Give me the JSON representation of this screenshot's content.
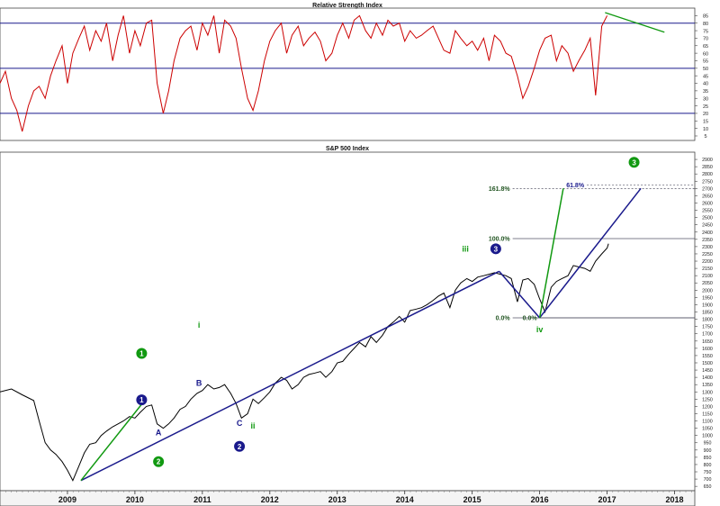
{
  "chart_data": [
    {
      "type": "line",
      "title": "Relative Strength Index",
      "ylim": [
        2,
        90
      ],
      "y_ticks": [
        5,
        10,
        15,
        20,
        25,
        30,
        35,
        40,
        45,
        50,
        55,
        60,
        65,
        70,
        75,
        80,
        85
      ],
      "reference_lines": [
        20,
        50,
        80
      ],
      "colors": {
        "series": "#cc0000",
        "reference": "#1a1a8c",
        "trendline": "#119911"
      },
      "trendline": {
        "x": [
          2016.97,
          2017.85
        ],
        "y": [
          87,
          74
        ]
      },
      "series": [
        {
          "x": [
            2008.0,
            2008.08,
            2008.17,
            2008.25,
            2008.33,
            2008.42,
            2008.5,
            2008.58,
            2008.67,
            2008.75,
            2008.83,
            2008.92,
            2009.0,
            2009.08,
            2009.17,
            2009.25,
            2009.33,
            2009.42,
            2009.5,
            2009.58,
            2009.67,
            2009.75,
            2009.83,
            2009.92,
            2010.0,
            2010.08,
            2010.17,
            2010.25,
            2010.33,
            2010.42,
            2010.5,
            2010.58,
            2010.67,
            2010.75,
            2010.83,
            2010.92,
            2011.0,
            2011.08,
            2011.17,
            2011.25,
            2011.33,
            2011.42,
            2011.5,
            2011.58,
            2011.67,
            2011.75,
            2011.83,
            2011.92,
            2012.0,
            2012.08,
            2012.17,
            2012.25,
            2012.33,
            2012.42,
            2012.5,
            2012.58,
            2012.67,
            2012.75,
            2012.83,
            2012.92,
            2013.0,
            2013.08,
            2013.17,
            2013.25,
            2013.33,
            2013.42,
            2013.5,
            2013.58,
            2013.67,
            2013.75,
            2013.83,
            2013.92,
            2014.0,
            2014.08,
            2014.17,
            2014.25,
            2014.33,
            2014.42,
            2014.5,
            2014.58,
            2014.67,
            2014.75,
            2014.83,
            2014.92,
            2015.0,
            2015.08,
            2015.17,
            2015.25,
            2015.33,
            2015.42,
            2015.5,
            2015.58,
            2015.67,
            2015.75,
            2015.83,
            2015.92,
            2016.0,
            2016.08,
            2016.17,
            2016.25,
            2016.33,
            2016.42,
            2016.5,
            2016.58,
            2016.67,
            2016.75,
            2016.83,
            2016.92,
            2017.0
          ],
          "y": [
            40,
            48,
            30,
            22,
            8,
            25,
            35,
            38,
            30,
            45,
            55,
            65,
            40,
            60,
            70,
            78,
            62,
            75,
            68,
            80,
            55,
            72,
            85,
            60,
            75,
            65,
            80,
            82,
            40,
            20,
            35,
            55,
            70,
            75,
            78,
            62,
            80,
            72,
            85,
            60,
            82,
            78,
            70,
            50,
            30,
            22,
            35,
            55,
            68,
            75,
            80,
            60,
            72,
            78,
            65,
            70,
            74,
            68,
            55,
            60,
            72,
            80,
            70,
            82,
            85,
            75,
            70,
            80,
            72,
            82,
            78,
            80,
            68,
            75,
            70,
            72,
            75,
            78,
            70,
            62,
            60,
            75,
            70,
            65,
            68,
            62,
            70,
            55,
            72,
            68,
            60,
            58,
            45,
            30,
            38,
            50,
            62,
            70,
            72,
            55,
            65,
            60,
            48,
            55,
            62,
            70,
            32,
            78,
            85
          ]
        }
      ]
    },
    {
      "type": "line",
      "title": "S&P 500 Index",
      "xlim": [
        2008.0,
        2018.3
      ],
      "x_ticks": [
        "2009",
        "2010",
        "2011",
        "2012",
        "2013",
        "2014",
        "2015",
        "2016",
        "2017",
        "2018"
      ],
      "x_tick_values": [
        2009,
        2010,
        2011,
        2012,
        2013,
        2014,
        2015,
        2016,
        2017,
        2018
      ],
      "ylim": [
        620,
        2950
      ],
      "y_ticks": [
        650,
        700,
        750,
        800,
        850,
        900,
        950,
        1000,
        1050,
        1100,
        1150,
        1200,
        1250,
        1300,
        1350,
        1400,
        1450,
        1500,
        1550,
        1600,
        1650,
        1700,
        1750,
        1800,
        1850,
        1900,
        1950,
        2000,
        2050,
        2100,
        2150,
        2200,
        2250,
        2300,
        2350,
        2400,
        2450,
        2500,
        2550,
        2600,
        2650,
        2700,
        2750,
        2800,
        2850,
        2900
      ],
      "colors": {
        "price": "#000000",
        "blue": "#1a1a8c",
        "green": "#119911",
        "fib": "#225522"
      },
      "series": [
        {
          "name": "",
          "x": [
            2008.0,
            2008.17,
            2008.33,
            2008.5,
            2008.58,
            2008.67,
            2008.75,
            2008.83,
            2008.92,
            2009.0,
            2009.08,
            2009.17,
            2009.25,
            2009.33,
            2009.42,
            2009.5,
            2009.58,
            2009.67,
            2009.75,
            2009.83,
            2009.92,
            2010.0,
            2010.08,
            2010.17,
            2010.25,
            2010.33,
            2010.42,
            2010.5,
            2010.58,
            2010.67,
            2010.75,
            2010.83,
            2010.92,
            2011.0,
            2011.08,
            2011.17,
            2011.25,
            2011.33,
            2011.42,
            2011.5,
            2011.58,
            2011.67,
            2011.75,
            2011.83,
            2011.92,
            2012.0,
            2012.08,
            2012.17,
            2012.25,
            2012.33,
            2012.42,
            2012.5,
            2012.58,
            2012.67,
            2012.75,
            2012.83,
            2012.92,
            2013.0,
            2013.08,
            2013.17,
            2013.25,
            2013.33,
            2013.42,
            2013.5,
            2013.58,
            2013.67,
            2013.75,
            2013.83,
            2013.92,
            2014.0,
            2014.08,
            2014.17,
            2014.25,
            2014.33,
            2014.42,
            2014.5,
            2014.58,
            2014.67,
            2014.75,
            2014.83,
            2014.92,
            2015.0,
            2015.08,
            2015.17,
            2015.25,
            2015.33,
            2015.42,
            2015.5,
            2015.58,
            2015.67,
            2015.75,
            2015.83,
            2015.92,
            2016.0,
            2016.08,
            2016.17,
            2016.25,
            2016.33,
            2016.42,
            2016.5,
            2016.58,
            2016.67,
            2016.75,
            2016.83,
            2016.92,
            2017.0,
            2017.02
          ],
          "y": [
            1300,
            1320,
            1280,
            1240,
            1100,
            950,
            900,
            870,
            820,
            760,
            690,
            790,
            880,
            940,
            950,
            1000,
            1030,
            1060,
            1080,
            1100,
            1130,
            1120,
            1160,
            1200,
            1210,
            1080,
            1050,
            1080,
            1120,
            1180,
            1200,
            1250,
            1290,
            1310,
            1350,
            1320,
            1330,
            1350,
            1290,
            1220,
            1120,
            1150,
            1250,
            1220,
            1260,
            1300,
            1360,
            1400,
            1380,
            1320,
            1350,
            1400,
            1420,
            1430,
            1440,
            1400,
            1440,
            1500,
            1510,
            1560,
            1600,
            1640,
            1610,
            1680,
            1640,
            1690,
            1750,
            1780,
            1820,
            1780,
            1860,
            1870,
            1880,
            1900,
            1930,
            1960,
            1980,
            1880,
            2000,
            2050,
            2080,
            2060,
            2090,
            2100,
            2110,
            2120,
            2110,
            2100,
            2080,
            1920,
            2070,
            2080,
            2040,
            1940,
            1850,
            2020,
            2060,
            2080,
            2100,
            2170,
            2160,
            2150,
            2130,
            2200,
            2250,
            2290,
            2320
          ]
        }
      ],
      "overlays": {
        "blue_lines": [
          [
            [
              2009.2,
              690
            ],
            [
              2015.4,
              2130
            ]
          ],
          [
            [
              2015.4,
              2130
            ],
            [
              2016.0,
              1810
            ]
          ],
          [
            [
              2016.0,
              1810
            ],
            [
              2017.5,
              2700
            ]
          ]
        ],
        "green_lines": [
          [
            [
              2009.2,
              690
            ],
            [
              2010.1,
              1215
            ]
          ],
          [
            [
              2016.0,
              1810
            ],
            [
              2016.35,
              2700
            ]
          ]
        ],
        "fib_levels": [
          {
            "label": "161.8%",
            "value": 2700,
            "x_start": 2015.6
          },
          {
            "label": "61.8%",
            "value": 2725,
            "x_start": 2016.7
          },
          {
            "label": "100.0%",
            "value": 2355,
            "x_start": 2015.6
          },
          {
            "label": "0.0%",
            "value": 1810,
            "x_start": 2015.6
          },
          {
            "label": "0.0%",
            "value": 1810,
            "x_start": 2016.0
          }
        ],
        "annotations": [
          {
            "text": "i",
            "x": 2010.95,
            "y": 1760,
            "color": "green",
            "style": "plain"
          },
          {
            "text": "ii",
            "x": 2011.75,
            "y": 1065,
            "color": "green",
            "style": "plain"
          },
          {
            "text": "iii",
            "x": 2014.9,
            "y": 2285,
            "color": "green",
            "style": "plain"
          },
          {
            "text": "iv",
            "x": 2016.0,
            "y": 1730,
            "color": "green",
            "style": "plain"
          },
          {
            "text": "A",
            "x": 2010.35,
            "y": 1020,
            "color": "blue",
            "style": "plain"
          },
          {
            "text": "B",
            "x": 2010.95,
            "y": 1360,
            "color": "blue",
            "style": "plain"
          },
          {
            "text": "C",
            "x": 2011.55,
            "y": 1085,
            "color": "blue",
            "style": "plain"
          },
          {
            "text": "1",
            "x": 2010.1,
            "y": 1565,
            "color": "green",
            "style": "circle"
          },
          {
            "text": "2",
            "x": 2010.35,
            "y": 820,
            "color": "green",
            "style": "circle"
          },
          {
            "text": "3",
            "x": 2017.4,
            "y": 2880,
            "color": "green",
            "style": "circle"
          },
          {
            "text": "1",
            "x": 2010.1,
            "y": 1245,
            "color": "blue",
            "style": "circle"
          },
          {
            "text": "2",
            "x": 2011.55,
            "y": 925,
            "color": "blue",
            "style": "circle"
          },
          {
            "text": "3",
            "x": 2015.35,
            "y": 2285,
            "color": "blue",
            "style": "circle"
          }
        ]
      }
    }
  ]
}
